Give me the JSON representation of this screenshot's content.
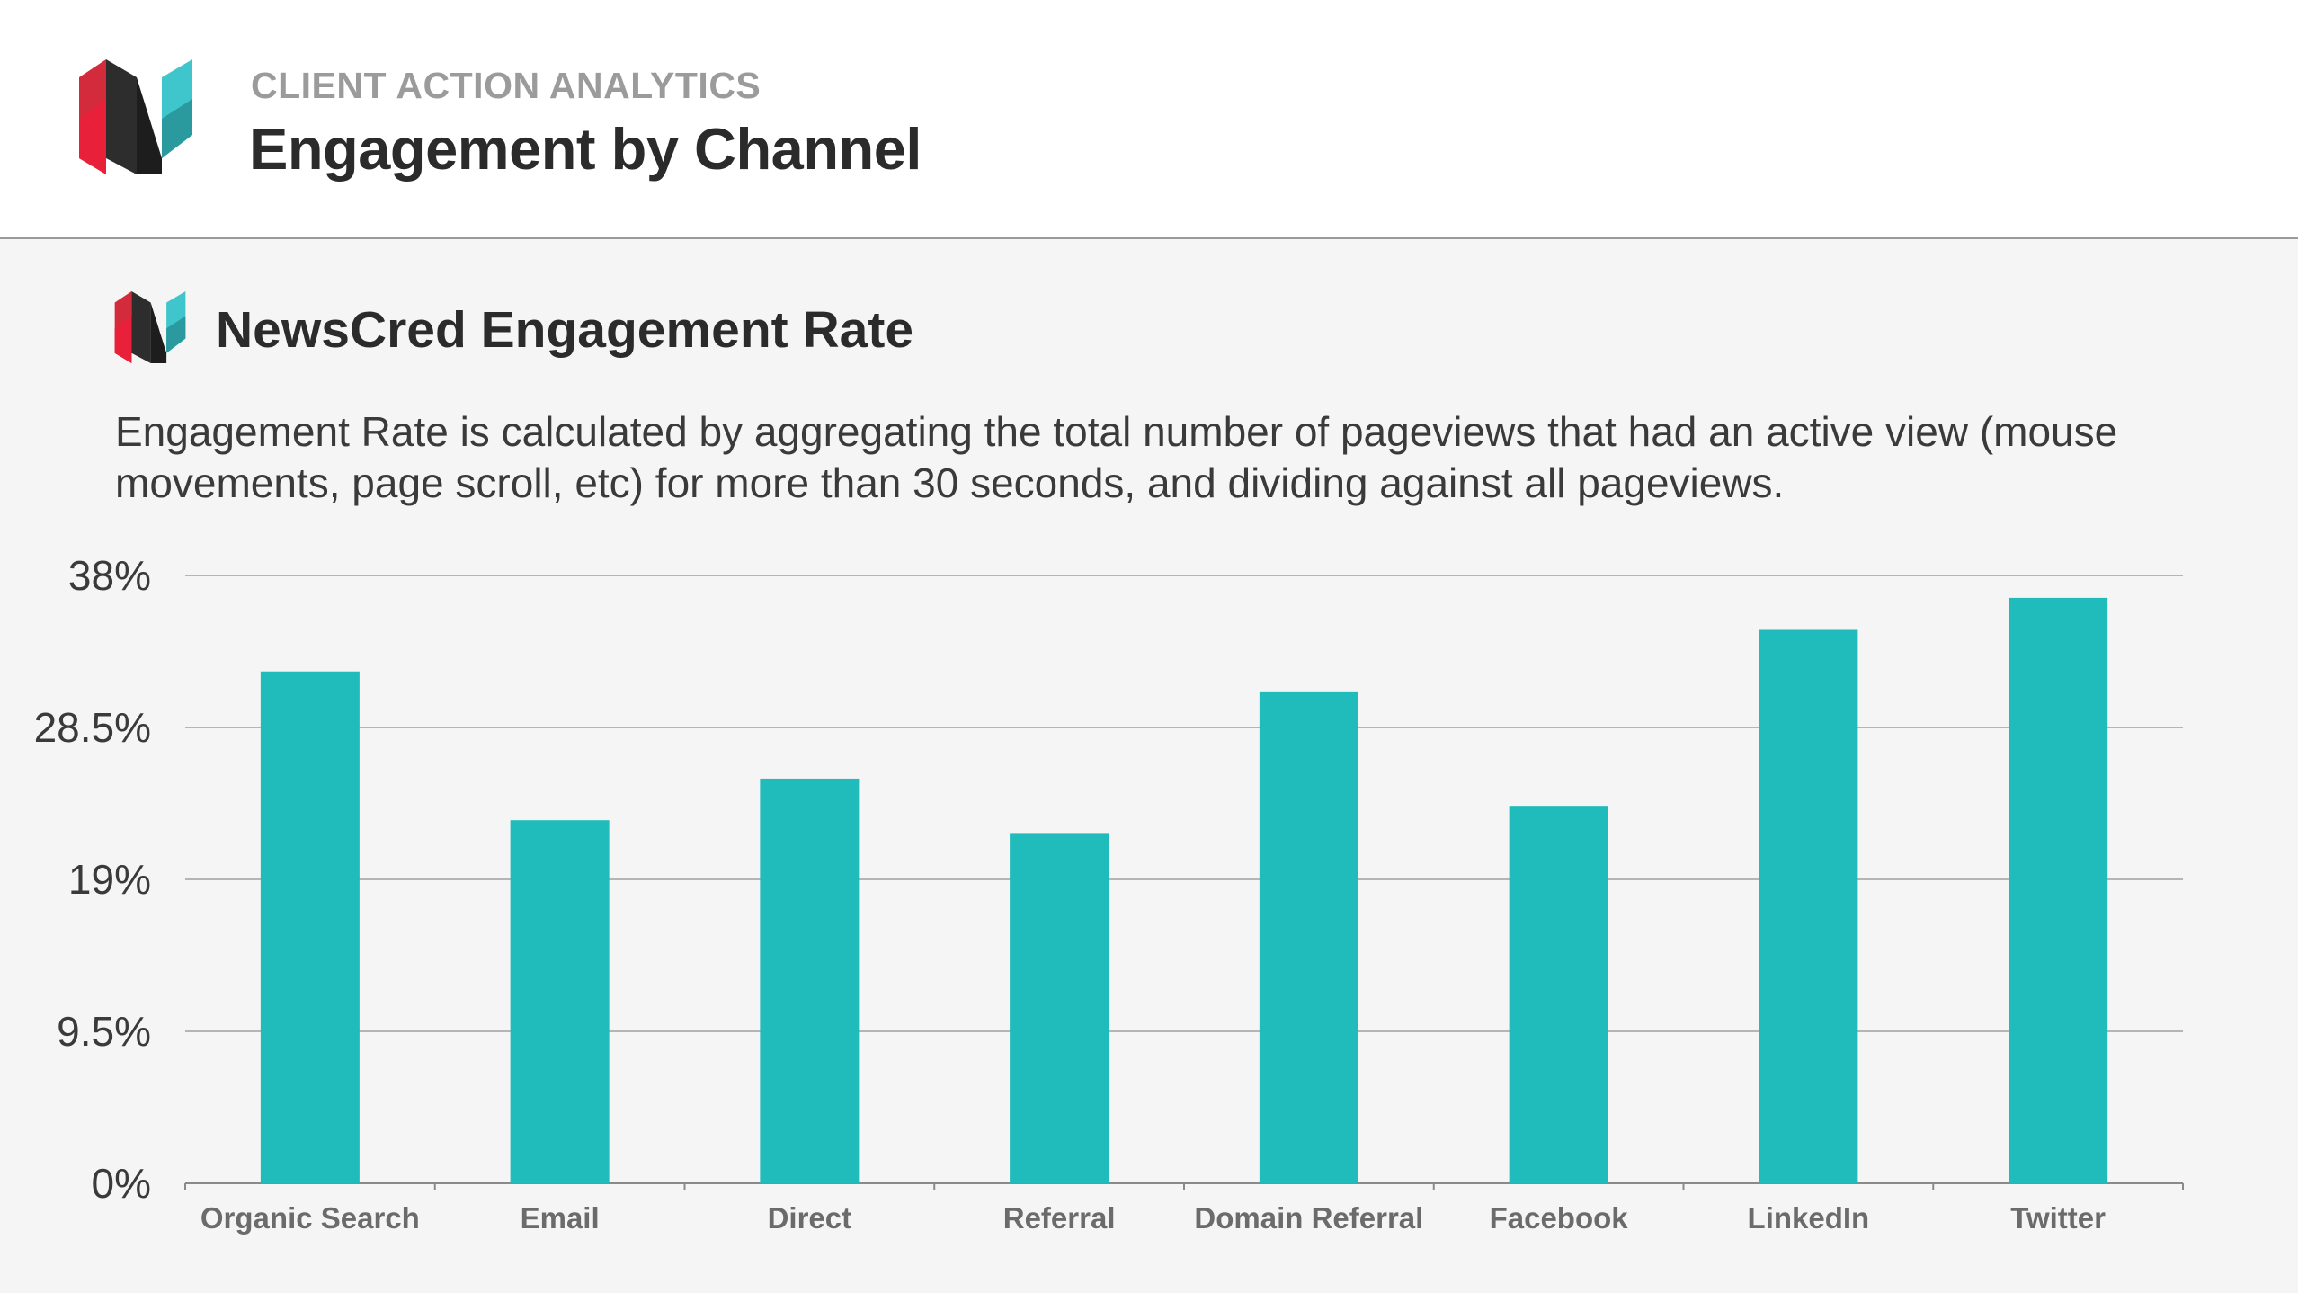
{
  "header": {
    "eyebrow": "CLIENT ACTION ANALYTICS",
    "title": "Engagement by Channel",
    "logo_icon": "newscred-logo-icon"
  },
  "section": {
    "title": "NewsCred Engagement Rate",
    "description": "Engagement Rate is calculated  by aggregating the total number of pageviews that had an active view (mouse movements, page scroll, etc) for more than 30 seconds, and dividing against all pageviews."
  },
  "colors": {
    "bar": "#20bbbb",
    "grid": "#b5b5b5",
    "axis": "#8a8a8a",
    "tick_text": "#3a3a3a",
    "category_text": "#6b6b6b"
  },
  "chart_data": {
    "type": "bar",
    "categories": [
      "Organic Search",
      "Email",
      "Direct",
      "Referral",
      "Domain Referral",
      "Facebook",
      "LinkedIn",
      "Twitter"
    ],
    "values": [
      32.0,
      22.7,
      25.3,
      21.9,
      30.7,
      23.6,
      34.6,
      36.6
    ],
    "yticks": [
      "0%",
      "9.5%",
      "19%",
      "28.5%",
      "38%"
    ],
    "ytick_values": [
      0,
      9.5,
      19,
      28.5,
      38
    ],
    "ylim": [
      0,
      38
    ],
    "xlabel": "",
    "ylabel": "",
    "grid": true
  }
}
